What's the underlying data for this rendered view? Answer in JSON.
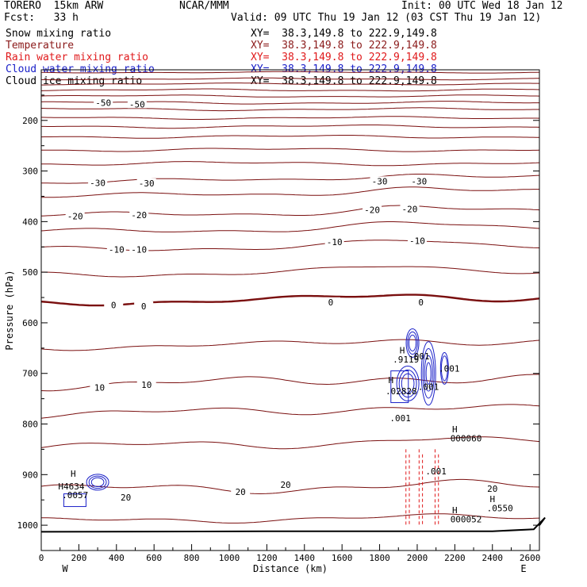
{
  "header": {
    "model": "TORERO  15km ARW",
    "org": "NCAR/MMM",
    "init": "Init: 00 UTC Wed 18 Jan 12",
    "fcst": "Fcst:   33 h",
    "valid": "Valid: 09 UTC Thu 19 Jan 12 (03 CST Thu 19 Jan 12)"
  },
  "legend": [
    {
      "name": "Snow mixing ratio",
      "color": "#000000",
      "xy": "XY=  38.3,149.8 to 222.9,149.8"
    },
    {
      "name": "Temperature",
      "color": "#8b1a1a",
      "xy": "XY=  38.3,149.8 to 222.9,149.8"
    },
    {
      "name": "Rain water mixing ratio",
      "color": "#e0191b",
      "xy": "XY=  38.3,149.8 to 222.9,149.8"
    },
    {
      "name": "Cloud water mixing ratio",
      "color": "#1a20c8",
      "xy": "XY=  38.3,149.8 to 222.9,149.8"
    },
    {
      "name": "Cloud ice mixing ratio",
      "color": "#000000",
      "xy": "XY=  38.3,149.8 to 222.9,149.8"
    }
  ],
  "colors": {
    "temperature": "#7a0f0f",
    "rain": "#e0191b",
    "cloud_water": "#1a20c8",
    "ground": "#000000"
  },
  "chart_data": {
    "type": "line",
    "xlabel": "Distance (km)",
    "ylabel": "Pressure (hPa)",
    "x_ticks": [
      0,
      200,
      400,
      600,
      800,
      1000,
      1200,
      1400,
      1600,
      1800,
      2000,
      2200,
      2400,
      2600
    ],
    "y_ticks": [
      200,
      300,
      400,
      500,
      600,
      700,
      800,
      900,
      1000
    ],
    "xlim": [
      0,
      2650
    ],
    "ylim": [
      1050,
      100
    ],
    "x_end_labels": {
      "left": "W",
      "right": "E"
    },
    "temperature_labels": [
      {
        "text": "-50",
        "x": 330,
        "p": 165
      },
      {
        "text": "-50",
        "x": 510,
        "p": 168
      },
      {
        "text": "-30",
        "x": 300,
        "p": 323
      },
      {
        "text": "-30",
        "x": 560,
        "p": 324
      },
      {
        "text": "-30",
        "x": 1800,
        "p": 320
      },
      {
        "text": "-30",
        "x": 2010,
        "p": 320
      },
      {
        "text": "-20",
        "x": 180,
        "p": 389
      },
      {
        "text": "-20",
        "x": 520,
        "p": 387
      },
      {
        "text": "-20",
        "x": 1760,
        "p": 377
      },
      {
        "text": "-20",
        "x": 1960,
        "p": 375
      },
      {
        "text": "-10",
        "x": 400,
        "p": 455
      },
      {
        "text": "-10",
        "x": 520,
        "p": 455
      },
      {
        "text": "-10",
        "x": 1560,
        "p": 440
      },
      {
        "text": "-10",
        "x": 2000,
        "p": 438
      },
      {
        "text": "0",
        "x": 385,
        "p": 565
      },
      {
        "text": "0",
        "x": 545,
        "p": 567
      },
      {
        "text": "0",
        "x": 1540,
        "p": 559
      },
      {
        "text": "0",
        "x": 2020,
        "p": 559
      },
      {
        "text": "10",
        "x": 310,
        "p": 728
      },
      {
        "text": "10",
        "x": 560,
        "p": 722
      },
      {
        "text": "20",
        "x": 450,
        "p": 945
      },
      {
        "text": "20",
        "x": 1060,
        "p": 934
      },
      {
        "text": "20",
        "x": 1300,
        "p": 920
      },
      {
        "text": "20",
        "x": 2400,
        "p": 928
      }
    ],
    "extrema_labels": [
      {
        "text": "H",
        "x": 170,
        "p": 898,
        "color": "#1a20c8"
      },
      {
        "text": "H4634",
        "x": 160,
        "p": 923,
        "color": "#1a20c8"
      },
      {
        "text": ".0057",
        "x": 180,
        "p": 940,
        "color": "#e0191b"
      },
      {
        "text": "H",
        "x": 1920,
        "p": 654,
        "color": "#1a20c8"
      },
      {
        "text": ".9119",
        "x": 1940,
        "p": 672,
        "color": "#1a20c8"
      },
      {
        "text": ".001",
        "x": 2010,
        "p": 666,
        "color": "#1a20c8"
      },
      {
        "text": ".001",
        "x": 2170,
        "p": 690,
        "color": "#1a20c8"
      },
      {
        "text": "H",
        "x": 1860,
        "p": 713,
        "color": "#e0191b"
      },
      {
        "text": ".02828",
        "x": 1915,
        "p": 735,
        "color": "#e0191b"
      },
      {
        "text": ".001",
        "x": 2060,
        "p": 726,
        "color": "#1a20c8"
      },
      {
        "text": ".001",
        "x": 1910,
        "p": 788,
        "color": "#1a20c8"
      },
      {
        "text": "H",
        "x": 2200,
        "p": 810,
        "color": "#e0191b"
      },
      {
        "text": "000060",
        "x": 2260,
        "p": 828,
        "color": "#e0191b"
      },
      {
        "text": ".001",
        "x": 2100,
        "p": 893,
        "color": "#e0191b"
      },
      {
        "text": "H",
        "x": 2400,
        "p": 948,
        "color": "#1a20c8"
      },
      {
        "text": ".0550",
        "x": 2440,
        "p": 966,
        "color": "#1a20c8"
      },
      {
        "text": "H",
        "x": 2200,
        "p": 970,
        "color": "#e0191b"
      },
      {
        "text": "000052",
        "x": 2260,
        "p": 988,
        "color": "#e0191b"
      }
    ]
  }
}
